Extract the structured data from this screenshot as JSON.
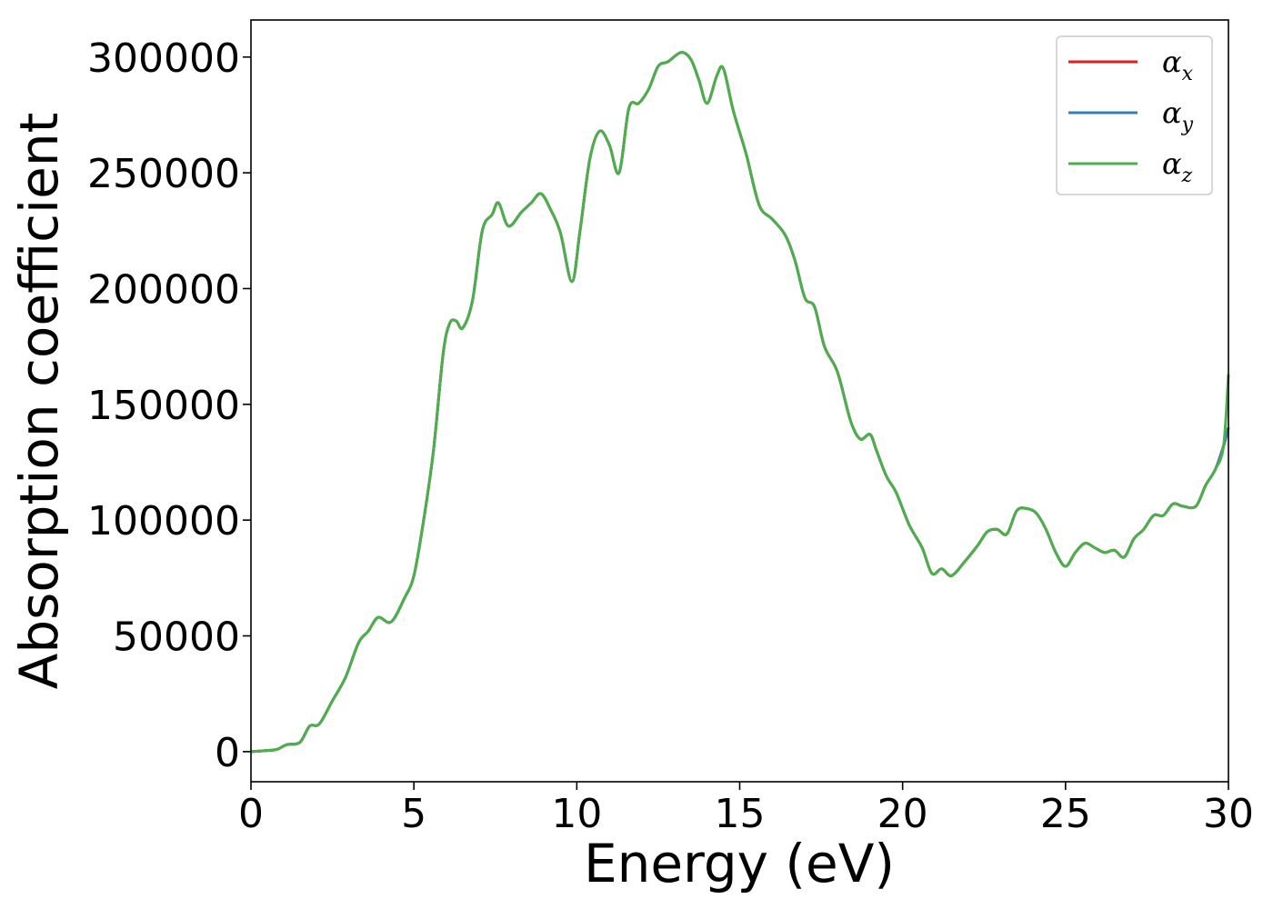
{
  "chart_data": {
    "type": "line",
    "xlabel": "Energy (eV)",
    "ylabel": "Absorption coefficient",
    "xlim": [
      0,
      30
    ],
    "ylim": [
      -13000,
      316000
    ],
    "xticks": [
      "0",
      "5",
      "10",
      "15",
      "20",
      "25",
      "30"
    ],
    "yticks": [
      "0",
      "50000",
      "100000",
      "150000",
      "200000",
      "250000",
      "300000"
    ],
    "grid": false,
    "legend": {
      "placement": "top-right",
      "entries": [
        {
          "symbol": "α",
          "sub": "x",
          "color": "#e41a1c"
        },
        {
          "symbol": "α",
          "sub": "y",
          "color": "#377eb8"
        },
        {
          "symbol": "α",
          "sub": "z",
          "color": "#4daf4a"
        }
      ]
    },
    "x": [
      0,
      0.5,
      0.8,
      1.1,
      1.5,
      1.8,
      2.1,
      2.5,
      2.9,
      3.3,
      3.6,
      3.9,
      4.3,
      4.7,
      5.0,
      5.3,
      5.6,
      5.9,
      6.1,
      6.3,
      6.5,
      6.8,
      7.1,
      7.4,
      7.6,
      7.9,
      8.3,
      8.6,
      8.9,
      9.2,
      9.5,
      9.85,
      10.1,
      10.4,
      10.7,
      11.0,
      11.3,
      11.6,
      11.9,
      12.2,
      12.5,
      12.8,
      13.2,
      13.5,
      13.75,
      14.0,
      14.3,
      14.5,
      14.8,
      15.2,
      15.6,
      16.0,
      16.4,
      16.7,
      17.0,
      17.3,
      17.6,
      18.0,
      18.4,
      18.7,
      19.0,
      19.2,
      19.5,
      19.8,
      20.2,
      20.6,
      20.9,
      21.2,
      21.5,
      21.9,
      22.3,
      22.6,
      22.9,
      23.2,
      23.5,
      23.8,
      24.1,
      24.4,
      24.7,
      25.0,
      25.3,
      25.6,
      25.9,
      26.2,
      26.5,
      26.8,
      27.1,
      27.4,
      27.7,
      28.0,
      28.3,
      28.6,
      29.0,
      29.3,
      29.6,
      29.85,
      30.0
    ],
    "series": [
      {
        "name": "α_x",
        "color": "#e41a1c",
        "values": [
          0,
          500,
          1000,
          3000,
          4000,
          11000,
          12000,
          22000,
          32000,
          47000,
          52000,
          58000,
          56000,
          66000,
          76000,
          100000,
          130000,
          172000,
          185000,
          186000,
          183000,
          195000,
          225000,
          232000,
          237000,
          227000,
          233000,
          237000,
          241000,
          234000,
          224000,
          203000,
          225000,
          256000,
          268000,
          262000,
          250000,
          278000,
          280000,
          286000,
          296000,
          298000,
          302000,
          299000,
          290000,
          280000,
          292000,
          295000,
          277000,
          258000,
          236000,
          230000,
          223000,
          212000,
          196000,
          192000,
          175000,
          164000,
          143000,
          135000,
          137000,
          130000,
          119000,
          112000,
          98000,
          88000,
          77000,
          79000,
          76000,
          82000,
          89000,
          95000,
          96000,
          94000,
          104000,
          105000,
          103000,
          96000,
          86000,
          80000,
          86000,
          90000,
          88000,
          86000,
          87000,
          84000,
          92000,
          96000,
          102000,
          102000,
          107000,
          106000,
          106000,
          115000,
          122000,
          132000,
          140000
        ]
      },
      {
        "name": "α_y",
        "color": "#377eb8",
        "values": [
          0,
          500,
          1000,
          3000,
          4000,
          11000,
          12000,
          22000,
          32000,
          47000,
          52000,
          58000,
          56000,
          66000,
          76000,
          100000,
          130000,
          172000,
          185000,
          186000,
          183000,
          195000,
          225000,
          232000,
          237000,
          227000,
          233000,
          237000,
          241000,
          234000,
          224000,
          203000,
          225000,
          256000,
          268000,
          262000,
          250000,
          278000,
          280000,
          286000,
          296000,
          298000,
          302000,
          299000,
          290000,
          280000,
          292000,
          295000,
          277000,
          258000,
          236000,
          230000,
          223000,
          212000,
          196000,
          192000,
          175000,
          164000,
          143000,
          135000,
          137000,
          130000,
          119000,
          112000,
          98000,
          88000,
          77000,
          79000,
          76000,
          82000,
          89000,
          95000,
          96000,
          94000,
          104000,
          105000,
          103000,
          96000,
          86000,
          80000,
          86000,
          90000,
          88000,
          86000,
          87000,
          84000,
          92000,
          96000,
          102000,
          102000,
          107000,
          106000,
          106000,
          115000,
          122000,
          132000,
          140000
        ]
      },
      {
        "name": "α_z",
        "color": "#4daf4a",
        "values": [
          0,
          500,
          1000,
          3000,
          4000,
          11000,
          12000,
          22000,
          32000,
          47000,
          52000,
          58000,
          56000,
          66000,
          76000,
          100000,
          130000,
          172000,
          185000,
          186000,
          183000,
          195000,
          225000,
          232000,
          237000,
          227000,
          233000,
          237000,
          241000,
          234000,
          224000,
          203000,
          225000,
          256000,
          268000,
          262000,
          250000,
          278000,
          280000,
          286000,
          296000,
          298000,
          302000,
          299000,
          290000,
          280000,
          292000,
          295000,
          277000,
          258000,
          236000,
          230000,
          223000,
          212000,
          196000,
          192000,
          175000,
          164000,
          143000,
          135000,
          137000,
          130000,
          119000,
          112000,
          98000,
          88000,
          77000,
          79000,
          76000,
          82000,
          89000,
          95000,
          96000,
          94000,
          104000,
          105000,
          103000,
          96000,
          86000,
          80000,
          86000,
          90000,
          88000,
          86000,
          87000,
          84000,
          92000,
          96000,
          102000,
          102000,
          107000,
          106000,
          106000,
          115000,
          122000,
          132000,
          163000
        ]
      }
    ]
  }
}
